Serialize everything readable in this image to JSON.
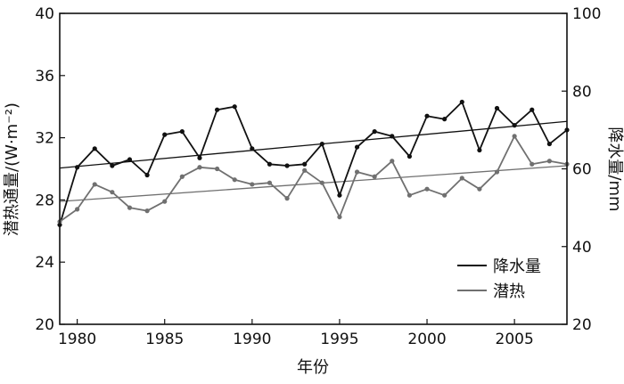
{
  "chart_data": {
    "type": "line",
    "xlabel": "年份",
    "ylabel_left": "潜热通量/(W·m⁻²)",
    "ylabel_right": "降水量/mm",
    "xlim": [
      1979,
      2008
    ],
    "ylim_left": [
      20,
      40
    ],
    "ylim_right": [
      20,
      100
    ],
    "x_ticks": [
      1980,
      1985,
      1990,
      1995,
      2000,
      2005
    ],
    "y_ticks_left": [
      20,
      24,
      28,
      32,
      36,
      40
    ],
    "y_ticks_right": [
      20,
      40,
      60,
      80,
      100
    ],
    "legend_position": "lower-right",
    "x": [
      1979,
      1980,
      1981,
      1982,
      1983,
      1984,
      1985,
      1986,
      1987,
      1988,
      1989,
      1990,
      1991,
      1992,
      1993,
      1994,
      1995,
      1996,
      1997,
      1998,
      1999,
      2000,
      2001,
      2002,
      2003,
      2004,
      2005,
      2006,
      2007,
      2008
    ],
    "series": [
      {
        "name": "降水量",
        "axis": "right",
        "color": "#111111",
        "values": [
          45.6,
          60.4,
          65.2,
          60.8,
          62.4,
          58.4,
          68.8,
          69.6,
          62.8,
          75.2,
          76.0,
          65.2,
          61.2,
          60.8,
          61.2,
          66.4,
          53.2,
          65.6,
          69.6,
          68.4,
          63.2,
          73.6,
          72.8,
          77.2,
          64.8,
          75.6,
          71.2,
          75.2,
          66.4,
          70.0
        ],
        "trend": [
          60.2,
          72.2
        ]
      },
      {
        "name": "潜热",
        "axis": "left",
        "color": "#707070",
        "values": [
          26.6,
          27.4,
          29.0,
          28.5,
          27.5,
          27.3,
          27.9,
          29.5,
          30.1,
          30.0,
          29.3,
          29.0,
          29.1,
          28.1,
          29.9,
          29.1,
          26.9,
          29.8,
          29.5,
          30.5,
          28.3,
          28.7,
          28.3,
          29.4,
          28.7,
          29.8,
          32.1,
          30.3,
          30.5,
          30.3
        ],
        "trend": [
          27.9,
          30.2
        ]
      }
    ]
  }
}
